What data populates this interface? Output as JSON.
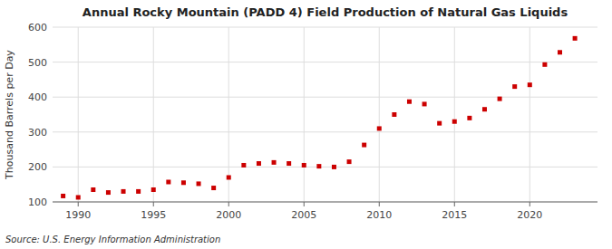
{
  "chart_data": {
    "type": "scatter",
    "title": "Annual Rocky Mountain (PADD 4) Field Production of Natural Gas Liquids",
    "y_label": "Thousand Barrels per Day",
    "source": "Source: U.S. Energy Information Administration",
    "x": [
      1989,
      1990,
      1991,
      1992,
      1993,
      1994,
      1995,
      1996,
      1997,
      1998,
      1999,
      2000,
      2001,
      2002,
      2003,
      2004,
      2005,
      2006,
      2007,
      2008,
      2009,
      2010,
      2011,
      2012,
      2013,
      2014,
      2015,
      2016,
      2017,
      2018,
      2019,
      2020,
      2021,
      2022,
      2023
    ],
    "values": [
      117,
      113,
      135,
      127,
      130,
      130,
      135,
      157,
      155,
      152,
      140,
      170,
      205,
      210,
      213,
      210,
      205,
      202,
      200,
      215,
      263,
      310,
      350,
      387,
      380,
      325,
      330,
      340,
      365,
      395,
      430,
      435,
      493,
      528,
      568
    ],
    "color": "#cc0000",
    "marker": "square",
    "xlim": [
      1988.3,
      2024.5
    ],
    "xticks": [
      1990,
      1995,
      2000,
      2005,
      2010,
      2015,
      2020
    ],
    "ylim": [
      100,
      600
    ],
    "yticks": [
      100,
      200,
      300,
      400,
      500,
      600
    ],
    "grid": true
  }
}
